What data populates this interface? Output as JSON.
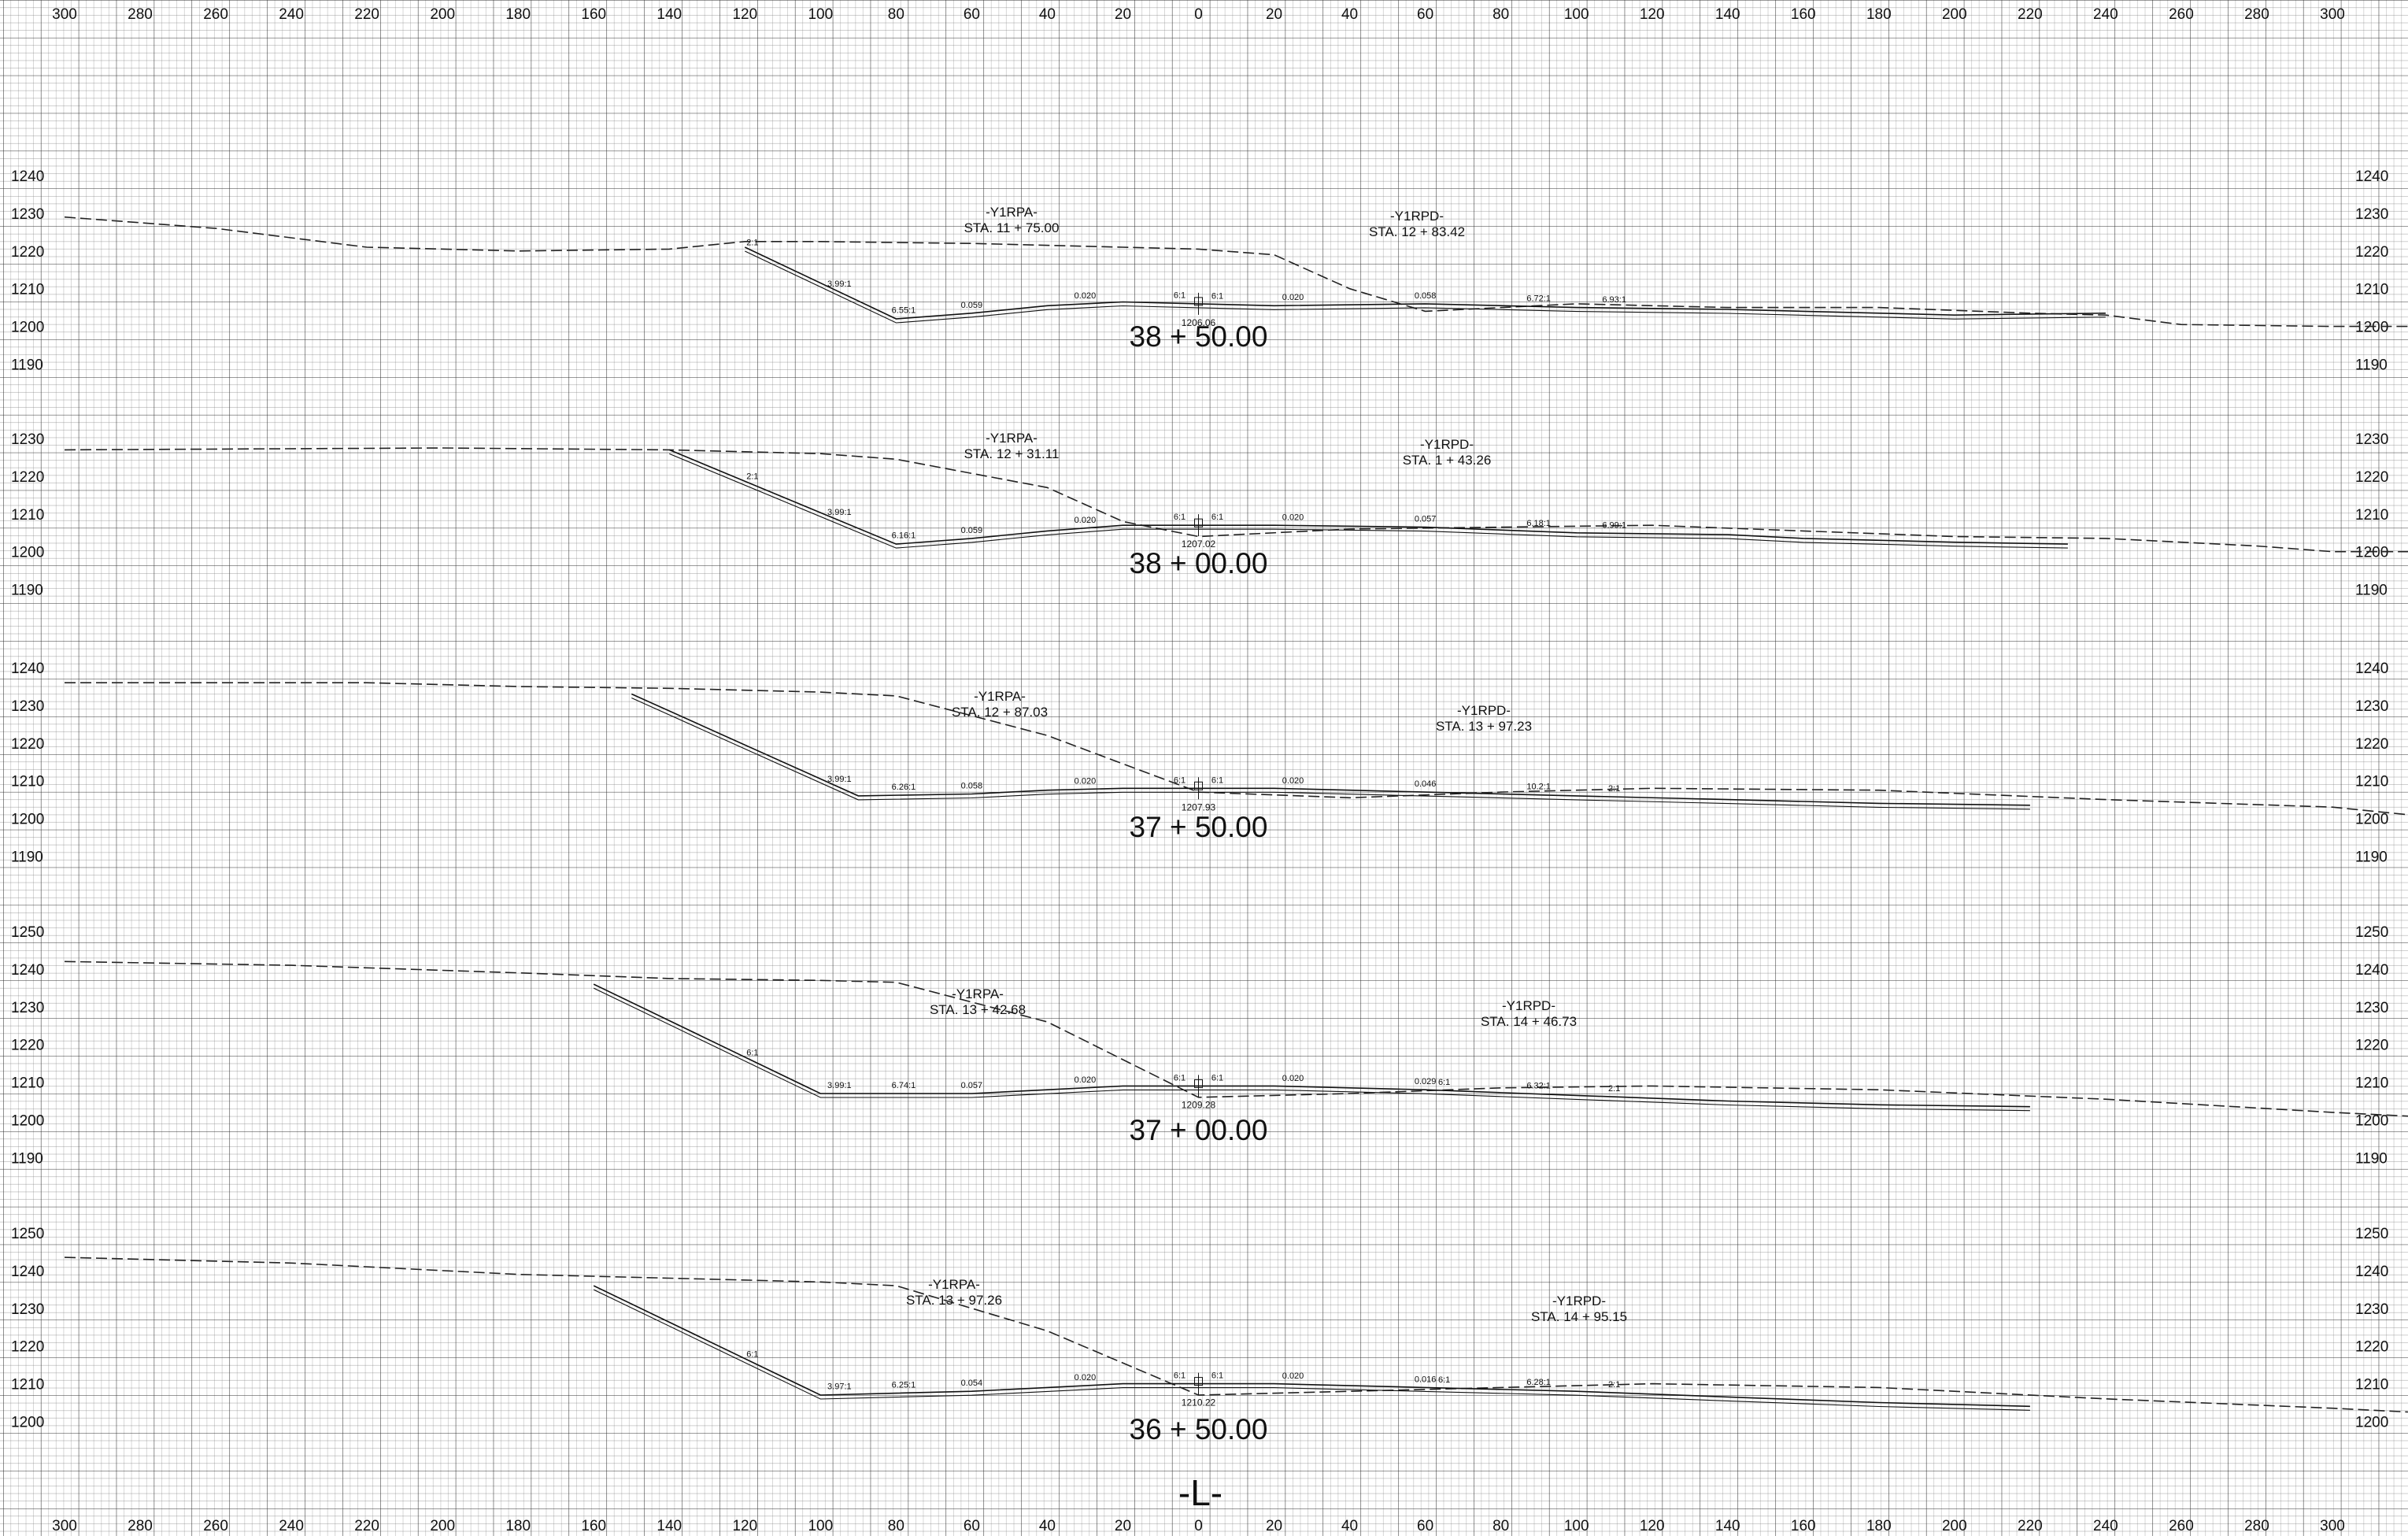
{
  "sheet": {
    "baseline_label": "-L-",
    "offset_axis": {
      "ticks": [
        300,
        280,
        260,
        240,
        220,
        200,
        180,
        160,
        140,
        120,
        100,
        80,
        60,
        40,
        20,
        0,
        20,
        40,
        60,
        80,
        100,
        120,
        140,
        160,
        180,
        200,
        220,
        240,
        260,
        280,
        300
      ],
      "min": -300,
      "max": 300
    }
  },
  "chart_data": {
    "type": "diagram",
    "sections": [
      {
        "station": "38 + 50.00",
        "elev_min": 1190,
        "elev_max": 1240,
        "elev_ticks": [
          "1240",
          "1230",
          "1220",
          "1210",
          "1200",
          "1190"
        ],
        "centerline_elev": "1206.06",
        "left_ramp": {
          "name": "-Y1RPA-",
          "station": "STA. 11 + 75.00"
        },
        "right_ramp": {
          "name": "-Y1RPD-",
          "station": "STA. 12 + 83.42"
        },
        "slope_labels": [
          "3.99:1",
          "6.55:1",
          "0.059",
          "0.020",
          "6:1",
          "6:1",
          "0.020",
          "0.058",
          "6.72:1",
          "6.93:1",
          "2:1"
        ],
        "ground": [
          [
            -300,
            1229
          ],
          [
            -260,
            1226
          ],
          [
            -220,
            1221
          ],
          [
            -180,
            1220
          ],
          [
            -140,
            1220.5
          ],
          [
            -120,
            1222.5
          ],
          [
            -100,
            1222.5
          ],
          [
            -60,
            1222
          ],
          [
            -20,
            1221
          ],
          [
            0,
            1220.5
          ],
          [
            20,
            1219
          ],
          [
            40,
            1210
          ],
          [
            60,
            1204
          ],
          [
            100,
            1206
          ],
          [
            140,
            1205
          ],
          [
            180,
            1205
          ],
          [
            220,
            1203.5
          ],
          [
            240,
            1203
          ],
          [
            260,
            1200.5
          ],
          [
            300,
            1200
          ],
          [
            400,
            1200
          ],
          [
            500,
            1200
          ],
          [
            600,
            1198
          ]
        ],
        "design": [
          [
            -120,
            1221
          ],
          [
            -80,
            1202
          ],
          [
            -60,
            1203.5
          ],
          [
            -40,
            1205.5
          ],
          [
            -20,
            1206.5
          ],
          [
            0,
            1206
          ],
          [
            20,
            1205.5
          ],
          [
            60,
            1206
          ],
          [
            100,
            1205
          ],
          [
            140,
            1204.5
          ],
          [
            160,
            1204
          ],
          [
            200,
            1203
          ],
          [
            240,
            1203.5
          ]
        ]
      },
      {
        "station": "38 + 00.00",
        "elev_min": 1190,
        "elev_max": 1230,
        "elev_ticks": [
          "1230",
          "1220",
          "1210",
          "1200",
          "1190"
        ],
        "centerline_elev": "1207.02",
        "left_ramp": {
          "name": "-Y1RPA-",
          "station": "STA. 12 + 31.11"
        },
        "right_ramp": {
          "name": "-Y1RPD-",
          "station": "STA. 1 + 43.26"
        },
        "slope_labels": [
          "3.99:1",
          "6.16:1",
          "0.059",
          "0.020",
          "6:1",
          "6:1",
          "0.020",
          "0.057",
          "6.18:1",
          "6.99:1",
          "2:1"
        ],
        "ground": [
          [
            -300,
            1227
          ],
          [
            -200,
            1227.5
          ],
          [
            -140,
            1227
          ],
          [
            -100,
            1226
          ],
          [
            -80,
            1224.5
          ],
          [
            -40,
            1217
          ],
          [
            -20,
            1208
          ],
          [
            0,
            1204
          ],
          [
            40,
            1206
          ],
          [
            80,
            1206.5
          ],
          [
            120,
            1207
          ],
          [
            160,
            1205.5
          ],
          [
            200,
            1204
          ],
          [
            240,
            1203.5
          ],
          [
            280,
            1201.5
          ],
          [
            300,
            1200
          ],
          [
            400,
            1200
          ],
          [
            500,
            1200
          ],
          [
            600,
            1198.5
          ]
        ],
        "design": [
          [
            -140,
            1227
          ],
          [
            -80,
            1202
          ],
          [
            -60,
            1203.5
          ],
          [
            -40,
            1205.5
          ],
          [
            -20,
            1207
          ],
          [
            0,
            1207
          ],
          [
            20,
            1207
          ],
          [
            60,
            1206.5
          ],
          [
            100,
            1205
          ],
          [
            140,
            1204.5
          ],
          [
            160,
            1203.5
          ],
          [
            200,
            1202.5
          ],
          [
            230,
            1202
          ]
        ]
      },
      {
        "station": "37 + 50.00",
        "elev_min": 1190,
        "elev_max": 1240,
        "elev_ticks": [
          "1240",
          "1230",
          "1220",
          "1210",
          "1200",
          "1190"
        ],
        "centerline_elev": "1207.93",
        "left_ramp": {
          "name": "-Y1RPA-",
          "station": "STA. 12 + 87.03"
        },
        "right_ramp": {
          "name": "-Y1RPD-",
          "station": "STA. 13 + 97.23"
        },
        "slope_labels": [
          "3.99:1",
          "6.26:1",
          "0.058",
          "0.020",
          "6:1",
          "6:1",
          "0.020",
          "0.046",
          "10.2:1",
          "2:1"
        ],
        "ground": [
          [
            -300,
            1236
          ],
          [
            -220,
            1236
          ],
          [
            -180,
            1235
          ],
          [
            -140,
            1234.5
          ],
          [
            -100,
            1233.5
          ],
          [
            -80,
            1232.5
          ],
          [
            -40,
            1222
          ],
          [
            0,
            1207
          ],
          [
            40,
            1205.5
          ],
          [
            80,
            1207
          ],
          [
            120,
            1208
          ],
          [
            180,
            1207.5
          ],
          [
            240,
            1205
          ],
          [
            300,
            1203
          ],
          [
            320,
            1201
          ],
          [
            340,
            1199
          ],
          [
            400,
            1200
          ],
          [
            500,
            1200
          ],
          [
            600,
            1198
          ]
        ],
        "design": [
          [
            -150,
            1233
          ],
          [
            -90,
            1206
          ],
          [
            -60,
            1206.5
          ],
          [
            -40,
            1207.5
          ],
          [
            -20,
            1208
          ],
          [
            0,
            1208
          ],
          [
            20,
            1208
          ],
          [
            60,
            1207
          ],
          [
            100,
            1206
          ],
          [
            140,
            1205
          ],
          [
            180,
            1204
          ],
          [
            220,
            1203.5
          ]
        ]
      },
      {
        "station": "37 + 00.00",
        "elev_min": 1190,
        "elev_max": 1250,
        "elev_ticks": [
          "1250",
          "1240",
          "1230",
          "1220",
          "1210",
          "1200",
          "1190"
        ],
        "centerline_elev": "1209.28",
        "left_ramp": {
          "name": "-Y1RPA-",
          "station": "STA. 13 + 42.68"
        },
        "right_ramp": {
          "name": "-Y1RPD-",
          "station": "STA. 14 + 46.73"
        },
        "slope_labels": [
          "3.99:1",
          "6.74:1",
          "0.057",
          "0.020",
          "6:1",
          "6:1",
          "0.020",
          "0.029",
          "6.32:1",
          "2:1",
          "6:1",
          "6:1"
        ],
        "ground": [
          [
            -300,
            1242
          ],
          [
            -240,
            1241
          ],
          [
            -180,
            1239
          ],
          [
            -140,
            1237.5
          ],
          [
            -100,
            1237
          ],
          [
            -80,
            1236.5
          ],
          [
            -40,
            1226
          ],
          [
            0,
            1206
          ],
          [
            40,
            1207
          ],
          [
            80,
            1208.5
          ],
          [
            120,
            1209
          ],
          [
            180,
            1208
          ],
          [
            240,
            1205.5
          ],
          [
            300,
            1202
          ],
          [
            340,
            1200
          ],
          [
            380,
            1201
          ],
          [
            420,
            1201.5
          ],
          [
            500,
            1201
          ],
          [
            600,
            1198
          ]
        ],
        "design": [
          [
            -160,
            1236
          ],
          [
            -100,
            1207
          ],
          [
            -60,
            1207
          ],
          [
            -40,
            1208
          ],
          [
            -20,
            1209
          ],
          [
            0,
            1209
          ],
          [
            20,
            1209
          ],
          [
            60,
            1208
          ],
          [
            100,
            1206.5
          ],
          [
            140,
            1205
          ],
          [
            180,
            1204
          ],
          [
            220,
            1203.5
          ]
        ]
      },
      {
        "station": "36 + 50.00",
        "elev_min": 1190,
        "elev_max": 1250,
        "elev_ticks": [
          "1250",
          "1240",
          "1230",
          "1220",
          "1210",
          "1200"
        ],
        "centerline_elev": "1210.22",
        "left_ramp": {
          "name": "-Y1RPA-",
          "station": "STA. 13 + 97.26"
        },
        "right_ramp": {
          "name": "-Y1RPD-",
          "station": "STA. 14 + 95.15"
        },
        "slope_labels": [
          "3.97:1",
          "6.25:1",
          "0.054",
          "0.020",
          "6:1",
          "6:1",
          "0.020",
          "0.016",
          "6.28:1",
          "2:1",
          "6:1",
          "6:1"
        ],
        "ground": [
          [
            -300,
            1243.5
          ],
          [
            -240,
            1242
          ],
          [
            -180,
            1239
          ],
          [
            -140,
            1238
          ],
          [
            -100,
            1237
          ],
          [
            -80,
            1236
          ],
          [
            -40,
            1224
          ],
          [
            0,
            1207
          ],
          [
            40,
            1208
          ],
          [
            80,
            1209
          ],
          [
            120,
            1210
          ],
          [
            180,
            1209
          ],
          [
            240,
            1206
          ],
          [
            300,
            1203.5
          ],
          [
            340,
            1201.5
          ],
          [
            380,
            1203
          ],
          [
            420,
            1203
          ],
          [
            480,
            1202.5
          ],
          [
            540,
            1201
          ],
          [
            600,
            1199.5
          ]
        ],
        "design": [
          [
            -160,
            1236
          ],
          [
            -100,
            1207
          ],
          [
            -60,
            1208
          ],
          [
            -40,
            1209
          ],
          [
            -20,
            1210
          ],
          [
            0,
            1210
          ],
          [
            20,
            1210
          ],
          [
            60,
            1209
          ],
          [
            100,
            1208
          ],
          [
            140,
            1206.5
          ],
          [
            180,
            1205
          ],
          [
            220,
            1204
          ]
        ]
      }
    ]
  }
}
